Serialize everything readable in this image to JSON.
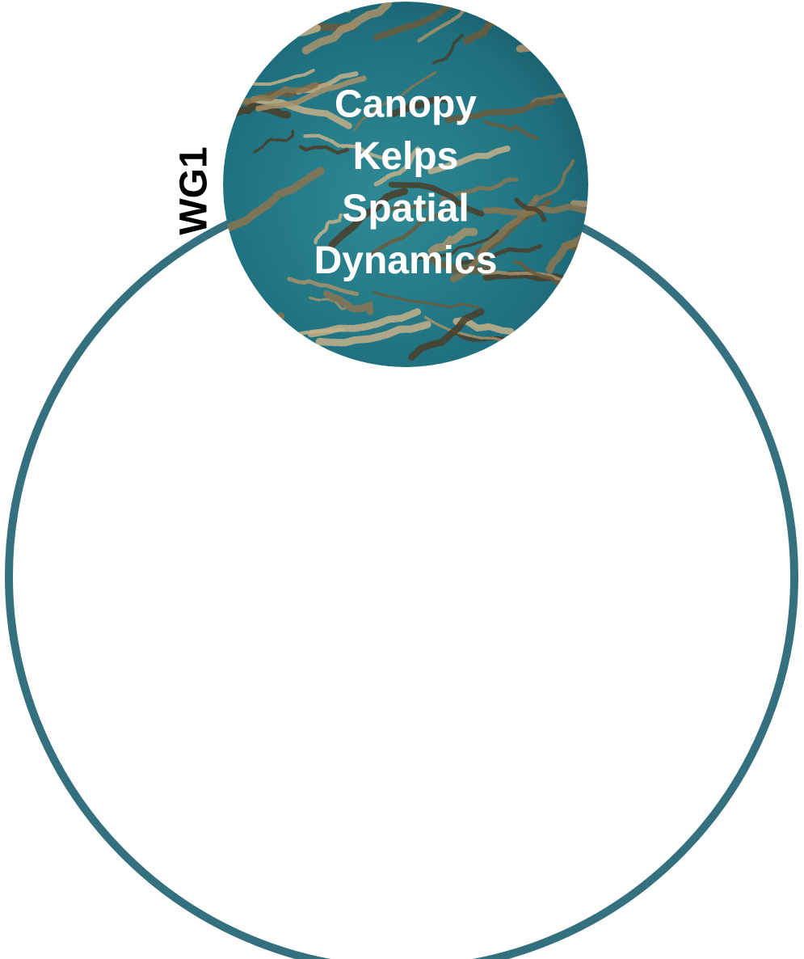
{
  "diagram": {
    "side_label": "WG1",
    "center_label": [
      "Canopy",
      "Kelps",
      "Spatial",
      "Dynamics"
    ]
  }
}
